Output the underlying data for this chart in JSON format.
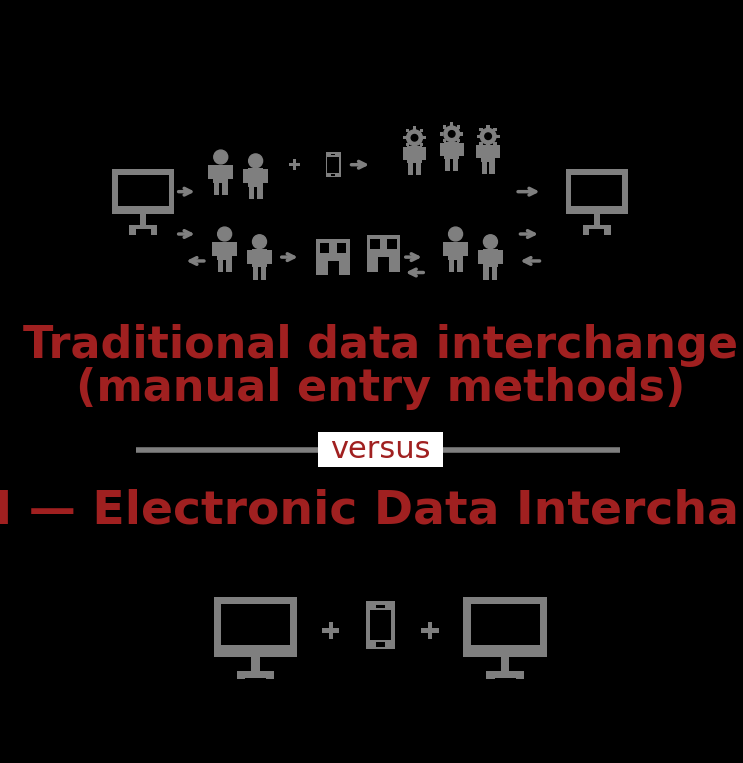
{
  "bg_color": "#000000",
  "icon_color": "#7f7f7f",
  "text_color_red": "#a02020",
  "versus_bg": "#ffffff",
  "line_color": "#7f7f7f",
  "title1_line1": "Traditional data interchange",
  "title1_line2": "(manual entry methods)",
  "versus_text": "versus",
  "title2": "EDI — Electronic Data Interchange",
  "title_fontsize": 32,
  "versus_fontsize": 22,
  "title2_fontsize": 34
}
